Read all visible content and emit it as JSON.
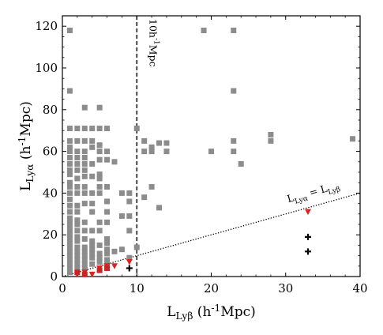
{
  "chart_data": {
    "type": "scatter",
    "xlabel": "L_{Lyβ} (h^{-1}Mpc)",
    "ylabel": "L_{Lyα} (h^{-1}Mpc)",
    "xlim": [
      0,
      40
    ],
    "ylim": [
      0,
      125
    ],
    "xticks": [
      "0",
      "10",
      "20",
      "30",
      "40"
    ],
    "yticks": [
      "0",
      "20",
      "40",
      "60",
      "80",
      "100",
      "120"
    ],
    "annotations": {
      "vline_label": "10h^{-1}Mpc",
      "diagonal_label": "L_{Lyα} = L_{Lyβ}"
    },
    "vline_x": 10,
    "diagonal": {
      "from": [
        0,
        0
      ],
      "to": [
        40,
        40
      ]
    },
    "series": [
      {
        "marker": "square",
        "color": "#8c8c8c",
        "points": [
          [
            1,
            118
          ],
          [
            1,
            89
          ],
          [
            1,
            71
          ],
          [
            1,
            65
          ],
          [
            1,
            62
          ],
          [
            1,
            60
          ],
          [
            1,
            57
          ],
          [
            1,
            54
          ],
          [
            1,
            51
          ],
          [
            1,
            49
          ],
          [
            1,
            45
          ],
          [
            1,
            43
          ],
          [
            1,
            40
          ],
          [
            1,
            37
          ],
          [
            1,
            34
          ],
          [
            1,
            31
          ],
          [
            1,
            28
          ],
          [
            1,
            26
          ],
          [
            1,
            24
          ],
          [
            1,
            22
          ],
          [
            1,
            20
          ],
          [
            1,
            18
          ],
          [
            1,
            16
          ],
          [
            1,
            14
          ],
          [
            1,
            12
          ],
          [
            1,
            10
          ],
          [
            1,
            8
          ],
          [
            1,
            6
          ],
          [
            1,
            4
          ],
          [
            1,
            2
          ],
          [
            2,
            71
          ],
          [
            2,
            65
          ],
          [
            2,
            60
          ],
          [
            2,
            57
          ],
          [
            2,
            54
          ],
          [
            2,
            51
          ],
          [
            2,
            47
          ],
          [
            2,
            43
          ],
          [
            2,
            40
          ],
          [
            2,
            34
          ],
          [
            2,
            31
          ],
          [
            2,
            27
          ],
          [
            2,
            25
          ],
          [
            2,
            22
          ],
          [
            2,
            19
          ],
          [
            2,
            17
          ],
          [
            2,
            14
          ],
          [
            2,
            12
          ],
          [
            2,
            10
          ],
          [
            2,
            8
          ],
          [
            2,
            6
          ],
          [
            2,
            4
          ],
          [
            3,
            81
          ],
          [
            3,
            71
          ],
          [
            3,
            65
          ],
          [
            3,
            60
          ],
          [
            3,
            57
          ],
          [
            3,
            54
          ],
          [
            3,
            51
          ],
          [
            3,
            48
          ],
          [
            3,
            43
          ],
          [
            3,
            40
          ],
          [
            3,
            35
          ],
          [
            3,
            26
          ],
          [
            3,
            22
          ],
          [
            3,
            18
          ],
          [
            3,
            14
          ],
          [
            3,
            12
          ],
          [
            3,
            10
          ],
          [
            3,
            8
          ],
          [
            3,
            6
          ],
          [
            3,
            4
          ],
          [
            4,
            71
          ],
          [
            4,
            65
          ],
          [
            4,
            62
          ],
          [
            4,
            54
          ],
          [
            4,
            48
          ],
          [
            4,
            40
          ],
          [
            4,
            35
          ],
          [
            4,
            31
          ],
          [
            4,
            22
          ],
          [
            4,
            17
          ],
          [
            4,
            15
          ],
          [
            4,
            13
          ],
          [
            4,
            11
          ],
          [
            4,
            9
          ],
          [
            4,
            6
          ],
          [
            5,
            81
          ],
          [
            5,
            71
          ],
          [
            5,
            63
          ],
          [
            5,
            60
          ],
          [
            5,
            56
          ],
          [
            5,
            49
          ],
          [
            5,
            47
          ],
          [
            5,
            43
          ],
          [
            5,
            40
          ],
          [
            5,
            26
          ],
          [
            5,
            22
          ],
          [
            5,
            15
          ],
          [
            5,
            11
          ],
          [
            5,
            9
          ],
          [
            5,
            7
          ],
          [
            6,
            71
          ],
          [
            6,
            60
          ],
          [
            6,
            56
          ],
          [
            6,
            43
          ],
          [
            6,
            36
          ],
          [
            6,
            31
          ],
          [
            6,
            26
          ],
          [
            6,
            18
          ],
          [
            6,
            16
          ],
          [
            6,
            13
          ],
          [
            6,
            11
          ],
          [
            6,
            8
          ],
          [
            6,
            6
          ],
          [
            7,
            55
          ],
          [
            7,
            12
          ],
          [
            8,
            40
          ],
          [
            8,
            29
          ],
          [
            8,
            13
          ],
          [
            9,
            40
          ],
          [
            9,
            36
          ],
          [
            9,
            29
          ],
          [
            9,
            22
          ],
          [
            9,
            9
          ],
          [
            10,
            71
          ],
          [
            10,
            14
          ],
          [
            11,
            65
          ],
          [
            11,
            60
          ],
          [
            11,
            38
          ],
          [
            12,
            60
          ],
          [
            12,
            43
          ],
          [
            12,
            62
          ],
          [
            13,
            64
          ],
          [
            13,
            33
          ],
          [
            14,
            64
          ],
          [
            14,
            60
          ],
          [
            19,
            118
          ],
          [
            20,
            60
          ],
          [
            23,
            118
          ],
          [
            23,
            89
          ],
          [
            23,
            65
          ],
          [
            23,
            60
          ],
          [
            24,
            54
          ],
          [
            28,
            68
          ],
          [
            28,
            65
          ],
          [
            39,
            66
          ]
        ]
      },
      {
        "marker": "triangle-down",
        "color": "#dd2222",
        "points": [
          [
            2,
            1
          ],
          [
            3,
            2
          ],
          [
            4,
            1
          ],
          [
            5,
            4
          ],
          [
            6,
            5
          ],
          [
            7,
            5
          ],
          [
            9,
            7
          ],
          [
            33,
            31
          ]
        ]
      },
      {
        "marker": "square",
        "color": "#cc2222",
        "points": [
          [
            2,
            2
          ],
          [
            3,
            1
          ],
          [
            5,
            3
          ],
          [
            6,
            4
          ]
        ]
      },
      {
        "marker": "plus",
        "color": "#000000",
        "points": [
          [
            9,
            4
          ],
          [
            33,
            19
          ],
          [
            33,
            12
          ]
        ]
      }
    ]
  }
}
